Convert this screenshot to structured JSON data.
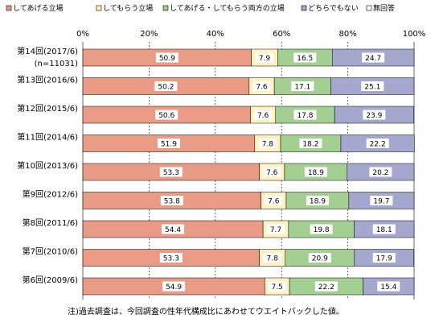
{
  "chart_data": {
    "type": "bar",
    "orientation": "horizontal",
    "stacked": true,
    "title": "",
    "xlabel": "",
    "ylabel": "",
    "xlim": [
      0,
      100
    ],
    "x_ticks": [
      "0%",
      "20%",
      "40%",
      "60%",
      "80%",
      "100%"
    ],
    "grid": true,
    "legend_position": "top",
    "categories": [
      "第14回(2017/6)",
      "第13回(2016/6)",
      "第12回(2015/6)",
      "第11回(2014/6)",
      "第10回(2013/6)",
      "第9回(2012/6)",
      "第8回(2011/6)",
      "第7回(2010/6)",
      "第6回(2009/6)"
    ],
    "category_notes": [
      "(n=11031)",
      "",
      "",
      "",
      "",
      "",
      "",
      "",
      ""
    ],
    "series": [
      {
        "name": "してあげる立場",
        "color": "#E99B86",
        "values": [
          50.9,
          50.2,
          50.6,
          51.9,
          53.3,
          53.8,
          54.4,
          53.3,
          54.9
        ]
      },
      {
        "name": "してもらう立場",
        "color": "#FFF2BF",
        "values": [
          7.9,
          7.6,
          7.6,
          7.8,
          7.6,
          7.6,
          7.7,
          7.8,
          7.5
        ]
      },
      {
        "name": "してあげる・してもらう両方の立場",
        "color": "#A4CF93",
        "values": [
          16.5,
          17.1,
          17.8,
          18.2,
          18.9,
          18.9,
          19.8,
          20.9,
          22.2
        ]
      },
      {
        "name": "どちらでもない",
        "color": "#A4A8CF",
        "values": [
          24.7,
          25.1,
          23.9,
          22.2,
          20.2,
          19.7,
          18.1,
          17.9,
          15.4
        ]
      },
      {
        "name": "無回答",
        "color": "#FFFFFF",
        "values": [
          0,
          0,
          0,
          0,
          0,
          0,
          0,
          0,
          0
        ]
      }
    ]
  },
  "footnote": "注)過去調査は、今回調査の性年代構成比にあわせてウエイトバックした値。"
}
